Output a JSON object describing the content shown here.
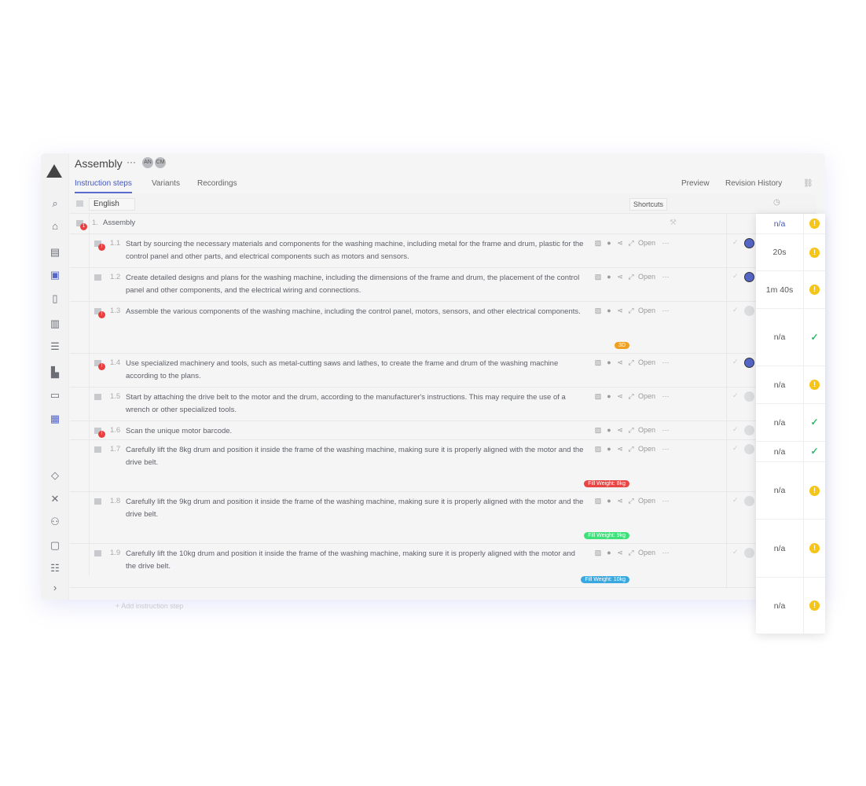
{
  "header": {
    "title": "Assembly",
    "more": "···",
    "avatars": [
      "AN",
      "CM"
    ]
  },
  "tabs": [
    {
      "label": "Instruction steps",
      "active": true
    },
    {
      "label": "Variants"
    },
    {
      "label": "Recordings"
    }
  ],
  "right_tabs": [
    "Preview",
    "Revision History"
  ],
  "toolbar": {
    "language": "English",
    "shortcuts": "Shortcuts"
  },
  "section": {
    "number": "1.",
    "title": "Assembly",
    "badge": "1"
  },
  "action_labels": {
    "open": "Open"
  },
  "steps": [
    {
      "num": "1.1",
      "text": "Start by sourcing the necessary materials and components for the washing machine, including metal for the frame and drum, plastic for the control panel and other parts, and electrical components such as motors and sensors.",
      "badge": "!",
      "active": true
    },
    {
      "num": "1.2",
      "text": "Create detailed designs and plans for the washing machine, including the dimensions of the frame and drum, the placement of the control panel and other components, and the electrical wiring and connections.",
      "active": true
    },
    {
      "num": "1.3",
      "text": "Assemble the various components of the washing machine, including the control panel, motors, sensors, and other electrical components.",
      "badge": "!",
      "tag": {
        "label": "3D",
        "color": "#f0a020"
      }
    },
    {
      "num": "1.4",
      "text": "Use specialized machinery and tools, such as metal-cutting saws and lathes, to create the frame and drum of the washing machine according to the plans.",
      "badge": "!",
      "active": true
    },
    {
      "num": "1.5",
      "text": "Start by attaching the drive belt to the motor and the drum, according to the manufacturer's instructions. This may require the use of a wrench or other specialized tools."
    },
    {
      "num": "1.6",
      "text": "Scan the unique motor barcode.",
      "badge": "!"
    },
    {
      "num": "1.7",
      "text": "Carefully lift the 8kg drum and position it inside the frame of the washing machine, making sure it is properly aligned with the motor and the drive belt.",
      "tag": {
        "label": "Fill Weight: 8kg",
        "color": "#e84545"
      }
    },
    {
      "num": "1.8",
      "text": "Carefully lift the 9kg drum and position it inside the frame of the washing machine, making sure it is properly aligned with the motor and the drive belt.",
      "tag": {
        "label": "Fill Weight: 9kg",
        "color": "#3ee07a"
      }
    },
    {
      "num": "1.9",
      "text": "Carefully lift the 10kg drum and position it inside the frame of the washing machine, making sure it is properly aligned with the motor and the drive belt.",
      "tag": {
        "label": "Fill Weight: 10kg",
        "color": "#3aa8e0"
      }
    }
  ],
  "times": [
    {
      "t": "n/a",
      "s": "warn"
    },
    {
      "t": "20s",
      "s": "warn"
    },
    {
      "t": "1m 40s",
      "s": "warn"
    },
    {
      "t": "n/a",
      "s": "ok"
    },
    {
      "t": "n/a",
      "s": "warn"
    },
    {
      "t": "n/a",
      "s": "ok"
    },
    {
      "t": "n/a",
      "s": "ok"
    },
    {
      "t": "n/a",
      "s": "warn"
    },
    {
      "t": "n/a",
      "s": "warn"
    },
    {
      "t": "n/a",
      "s": "warn"
    }
  ],
  "add_step": "+ Add instruction step"
}
